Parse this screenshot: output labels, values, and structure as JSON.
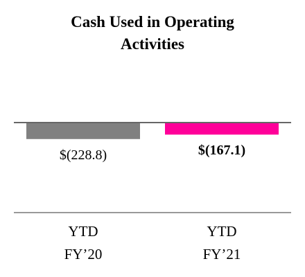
{
  "chart_data": {
    "type": "bar",
    "title": "Cash Used in Operating Activities",
    "categories": [
      "YTD FY’20",
      "YTD FY’21"
    ],
    "values": [
      -228.8,
      -167.1
    ],
    "value_labels": [
      "$(228.8)",
      "$(167.1)"
    ],
    "colors": [
      "#808080",
      "#ff0099"
    ],
    "ylim": [
      -1250,
      0
    ]
  }
}
